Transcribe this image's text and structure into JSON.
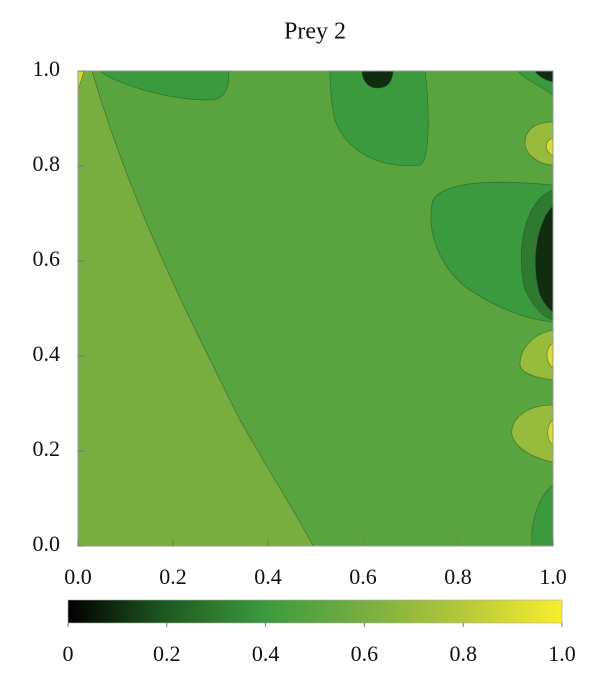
{
  "chart_data": {
    "type": "contour",
    "title": "Prey 2",
    "xlim": [
      0,
      1
    ],
    "ylim": [
      0,
      1
    ],
    "xticks": [
      {
        "value": 0,
        "label": "0.0"
      },
      0.2,
      0.4,
      0.6,
      0.8,
      {
        "value": 1,
        "label": "1.0"
      }
    ],
    "yticks": [
      {
        "value": 0,
        "label": "0.0"
      },
      0.2,
      0.4,
      0.6,
      0.8,
      {
        "value": 1,
        "label": "1.0"
      }
    ],
    "z": [
      0.5,
      0.6,
      0.4,
      0.4,
      0.1,
      0.4,
      0.1,
      0.7,
      0.9,
      0.4,
      0.3,
      0.1,
      0.7,
      0.9,
      0.7,
      0.9,
      0.4,
      0.9
    ],
    "clim": [
      0,
      1
    ],
    "cticks": [
      0,
      0.2,
      0.4,
      0.6,
      0.8,
      {
        "value": 1,
        "label": "1.0"
      }
    ],
    "colormap": [
      "#000000",
      "#1f5a22",
      "#3c9a3e",
      "#78ae40",
      "#b6c83a",
      "#f8ee2e"
    ]
  }
}
